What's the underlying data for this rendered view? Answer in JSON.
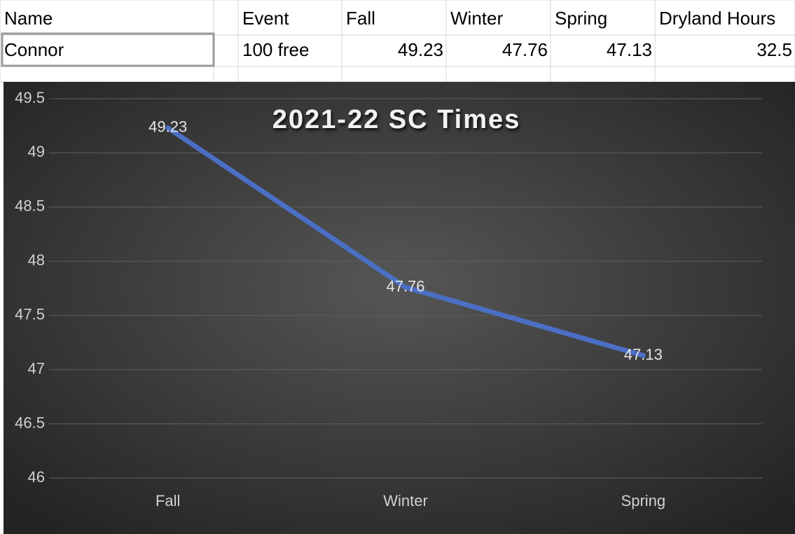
{
  "table": {
    "header": [
      "Name",
      "Event",
      "Fall",
      "Winter",
      "Spring",
      "Dryland Hours"
    ],
    "rows": [
      [
        "Connor",
        "100 free",
        49.23,
        47.76,
        47.13,
        32.5
      ]
    ]
  },
  "chart_data": {
    "type": "line",
    "title": "2021-22 SC Times",
    "categories": [
      "Fall",
      "Winter",
      "Spring"
    ],
    "values": [
      49.23,
      47.76,
      47.13
    ],
    "color": "#4a6fc4",
    "ylim": [
      46,
      49.5
    ],
    "yticks": [
      46,
      46.5,
      47,
      47.5,
      48,
      48.5,
      49,
      49.5
    ],
    "grid": true
  }
}
